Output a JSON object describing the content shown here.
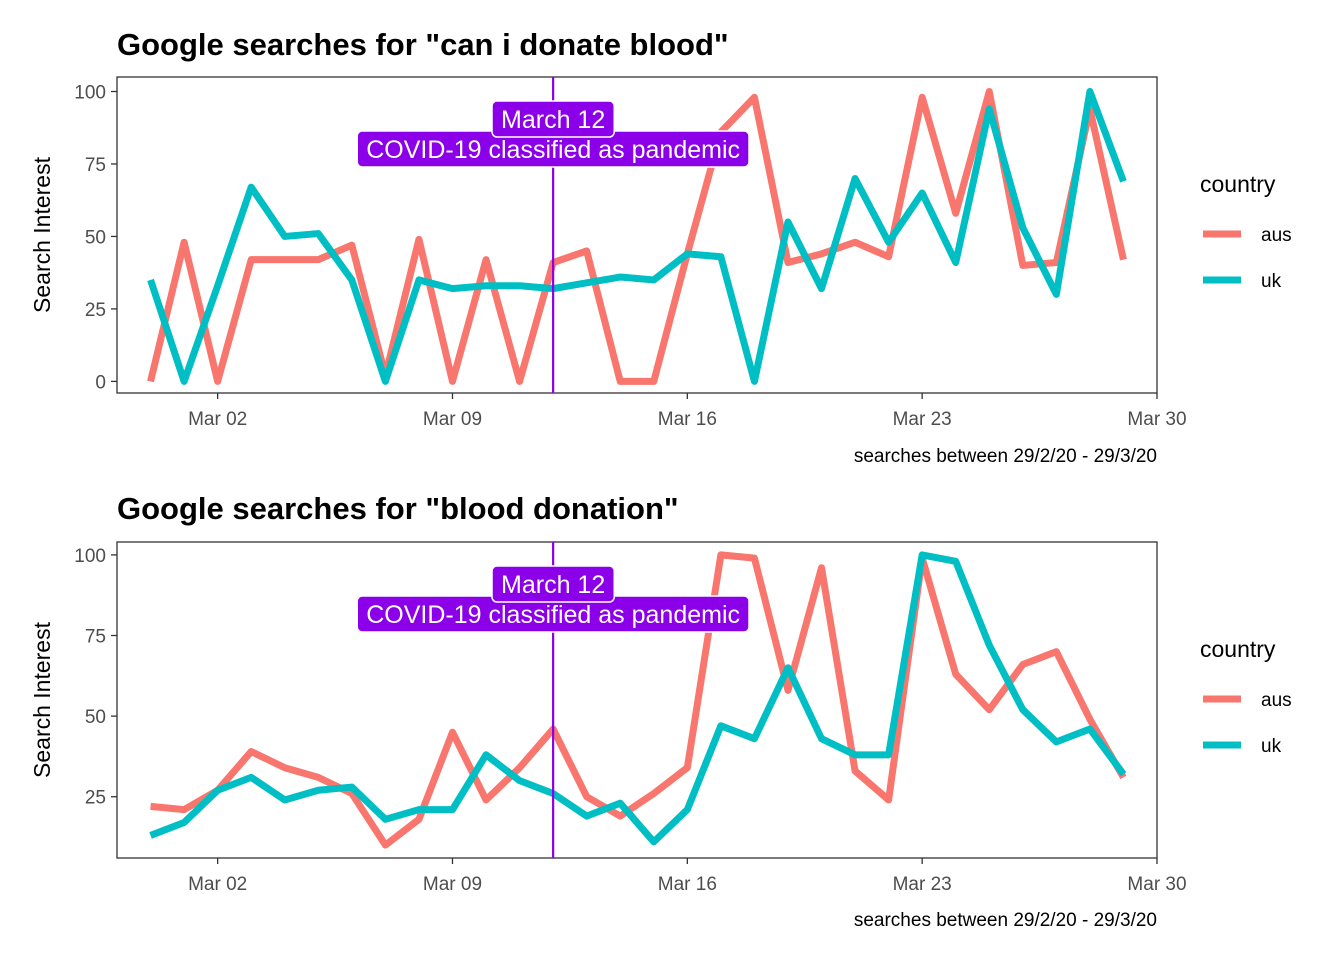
{
  "chart_data": [
    {
      "type": "line",
      "title": "Google searches for \"can i donate blood\"",
      "xlabel": "",
      "ylabel": "Search Interest",
      "caption": "searches between 29/2/20 - 29/3/20",
      "x": [
        "2020-02-29",
        "2020-03-01",
        "2020-03-02",
        "2020-03-03",
        "2020-03-04",
        "2020-03-05",
        "2020-03-06",
        "2020-03-07",
        "2020-03-08",
        "2020-03-09",
        "2020-03-10",
        "2020-03-11",
        "2020-03-12",
        "2020-03-13",
        "2020-03-14",
        "2020-03-15",
        "2020-03-16",
        "2020-03-17",
        "2020-03-18",
        "2020-03-19",
        "2020-03-20",
        "2020-03-21",
        "2020-03-22",
        "2020-03-23",
        "2020-03-24",
        "2020-03-25",
        "2020-03-26",
        "2020-03-27",
        "2020-03-28",
        "2020-03-29"
      ],
      "x_ticks": [
        "Mar 02",
        "Mar 09",
        "Mar 16",
        "Mar 23",
        "Mar 30"
      ],
      "x_tick_dates": [
        "2020-03-02",
        "2020-03-09",
        "2020-03-16",
        "2020-03-23",
        "2020-03-30"
      ],
      "xlim": [
        "2020-02-28",
        "2020-03-30"
      ],
      "y_ticks": [
        0,
        25,
        50,
        75,
        100
      ],
      "ylim": [
        -4,
        105
      ],
      "series": [
        {
          "name": "aus",
          "color": "#F8766D",
          "values": [
            0,
            48,
            0,
            42,
            42,
            42,
            47,
            2,
            49,
            0,
            42,
            0,
            41,
            45,
            0,
            0,
            44,
            86,
            98,
            41,
            44,
            48,
            43,
            98,
            58,
            100,
            40,
            41,
            94,
            42
          ]
        },
        {
          "name": "uk",
          "color": "#00BFC4",
          "values": [
            35,
            0,
            33,
            67,
            50,
            51,
            35,
            0,
            35,
            32,
            33,
            33,
            32,
            34,
            36,
            35,
            44,
            43,
            0,
            55,
            32,
            70,
            48,
            65,
            41,
            94,
            53,
            30,
            100,
            69
          ]
        }
      ],
      "legend": {
        "title": "country",
        "position": "right"
      },
      "annotation": {
        "date": "2020-03-12",
        "color": "#8B00E8",
        "line1": "March 12",
        "line2": "COVID-19 classified as pandemic"
      }
    },
    {
      "type": "line",
      "title": "Google searches for \"blood donation\"",
      "xlabel": "",
      "ylabel": "Search Interest",
      "caption": "searches between 29/2/20 - 29/3/20",
      "x": [
        "2020-02-29",
        "2020-03-01",
        "2020-03-02",
        "2020-03-03",
        "2020-03-04",
        "2020-03-05",
        "2020-03-06",
        "2020-03-07",
        "2020-03-08",
        "2020-03-09",
        "2020-03-10",
        "2020-03-11",
        "2020-03-12",
        "2020-03-13",
        "2020-03-14",
        "2020-03-15",
        "2020-03-16",
        "2020-03-17",
        "2020-03-18",
        "2020-03-19",
        "2020-03-20",
        "2020-03-21",
        "2020-03-22",
        "2020-03-23",
        "2020-03-24",
        "2020-03-25",
        "2020-03-26",
        "2020-03-27",
        "2020-03-28",
        "2020-03-29"
      ],
      "x_ticks": [
        "Mar 02",
        "Mar 09",
        "Mar 16",
        "Mar 23",
        "Mar 30"
      ],
      "x_tick_dates": [
        "2020-03-02",
        "2020-03-09",
        "2020-03-16",
        "2020-03-23",
        "2020-03-30"
      ],
      "xlim": [
        "2020-02-28",
        "2020-03-30"
      ],
      "y_ticks": [
        25,
        50,
        75,
        100
      ],
      "ylim": [
        6,
        104
      ],
      "series": [
        {
          "name": "aus",
          "color": "#F8766D",
          "values": [
            22,
            21,
            27,
            39,
            34,
            31,
            26,
            10,
            18,
            45,
            24,
            34,
            46,
            25,
            19,
            26,
            34,
            100,
            99,
            58,
            96,
            33,
            24,
            99,
            63,
            52,
            66,
            70,
            49,
            31
          ]
        },
        {
          "name": "uk",
          "color": "#00BFC4",
          "values": [
            13,
            17,
            27,
            31,
            24,
            27,
            28,
            18,
            21,
            21,
            38,
            30,
            26,
            19,
            23,
            11,
            21,
            47,
            43,
            65,
            43,
            38,
            38,
            100,
            98,
            72,
            52,
            42,
            46,
            32
          ]
        }
      ],
      "legend": {
        "title": "country",
        "position": "right"
      },
      "annotation": {
        "date": "2020-03-12",
        "color": "#8B00E8",
        "line1": "March 12",
        "line2": "COVID-19 classified as pandemic"
      }
    }
  ]
}
